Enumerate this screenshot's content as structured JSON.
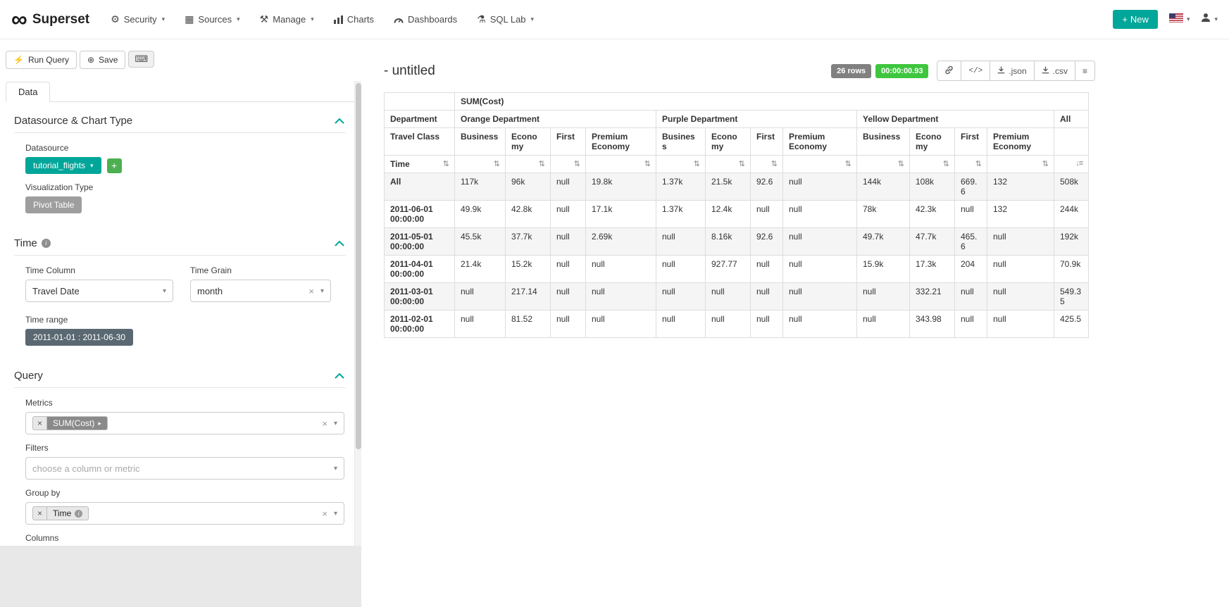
{
  "colors": {
    "accent": "#00A699",
    "badge-green": "#3ec63e",
    "badge-gray": "#808080",
    "btn-slate": "#5A6872",
    "btn-gray": "#9e9e9e",
    "btn-green": "#4CAF50",
    "chip-dark": "#8a8a8a"
  },
  "navbar": {
    "brand": "Superset",
    "menus": [
      {
        "label": "Security"
      },
      {
        "label": "Sources"
      },
      {
        "label": "Manage"
      },
      {
        "label": "Charts"
      },
      {
        "label": "Dashboards"
      },
      {
        "label": "SQL Lab"
      }
    ],
    "new_button_label": "New"
  },
  "toolbar": {
    "run_query_label": "Run Query",
    "save_label": "Save"
  },
  "tabs": {
    "data_label": "Data"
  },
  "controls": {
    "datasource_section_title": "Datasource & Chart Type",
    "datasource_label": "Datasource",
    "datasource_value": "tutorial_flights",
    "viz_type_label": "Visualization Type",
    "viz_type_value": "Pivot Table",
    "time_section_title": "Time",
    "time_column_label": "Time Column",
    "time_column_value": "Travel Date",
    "time_grain_label": "Time Grain",
    "time_grain_value": "month",
    "time_range_label": "Time range",
    "time_range_value": "2011-01-01 : 2011-06-30",
    "query_section_title": "Query",
    "metrics_label": "Metrics",
    "metrics_value": "SUM(Cost)",
    "filters_label": "Filters",
    "filters_placeholder": "choose a column or metric",
    "groupby_label": "Group by",
    "groupby_value": "Time",
    "columns_label": "Columns",
    "columns_values": [
      "Department",
      "Travel Class"
    ]
  },
  "results": {
    "title": "- untitled",
    "row_count_badge": "26 rows",
    "duration_badge": "00:00:00.93",
    "json_label": ".json",
    "csv_label": ".csv"
  },
  "pivot": {
    "metric_header": "SUM(Cost)",
    "department_label": "Department",
    "travel_class_label": "Travel Class",
    "time_label": "Time",
    "departments": [
      {
        "name": "Orange Department",
        "classes": [
          "Business",
          "Economy",
          "First",
          "Premium Economy"
        ]
      },
      {
        "name": "Purple Department",
        "classes": [
          "Business",
          "Economy",
          "First",
          "Premium Economy"
        ]
      },
      {
        "name": "Yellow Department",
        "classes": [
          "Business",
          "Economy",
          "First",
          "Premium Economy"
        ]
      },
      {
        "name": "All",
        "classes": [
          ""
        ]
      }
    ],
    "rows": [
      {
        "time": "All",
        "values": [
          "117k",
          "96k",
          "null",
          "19.8k",
          "1.37k",
          "21.5k",
          "92.6",
          "null",
          "144k",
          "108k",
          "669.6",
          "132",
          "508k"
        ]
      },
      {
        "time": "2011-06-01 00:00:00",
        "values": [
          "49.9k",
          "42.8k",
          "null",
          "17.1k",
          "1.37k",
          "12.4k",
          "null",
          "null",
          "78k",
          "42.3k",
          "null",
          "132",
          "244k"
        ]
      },
      {
        "time": "2011-05-01 00:00:00",
        "values": [
          "45.5k",
          "37.7k",
          "null",
          "2.69k",
          "null",
          "8.16k",
          "92.6",
          "null",
          "49.7k",
          "47.7k",
          "465.6",
          "null",
          "192k"
        ]
      },
      {
        "time": "2011-04-01 00:00:00",
        "values": [
          "21.4k",
          "15.2k",
          "null",
          "null",
          "null",
          "927.77",
          "null",
          "null",
          "15.9k",
          "17.3k",
          "204",
          "null",
          "70.9k"
        ]
      },
      {
        "time": "2011-03-01 00:00:00",
        "values": [
          "null",
          "217.14",
          "null",
          "null",
          "null",
          "null",
          "null",
          "null",
          "null",
          "332.21",
          "null",
          "null",
          "549.35"
        ]
      },
      {
        "time": "2011-02-01 00:00:00",
        "values": [
          "null",
          "81.52",
          "null",
          "null",
          "null",
          "null",
          "null",
          "null",
          "null",
          "343.98",
          "null",
          "null",
          "425.5"
        ]
      }
    ]
  }
}
